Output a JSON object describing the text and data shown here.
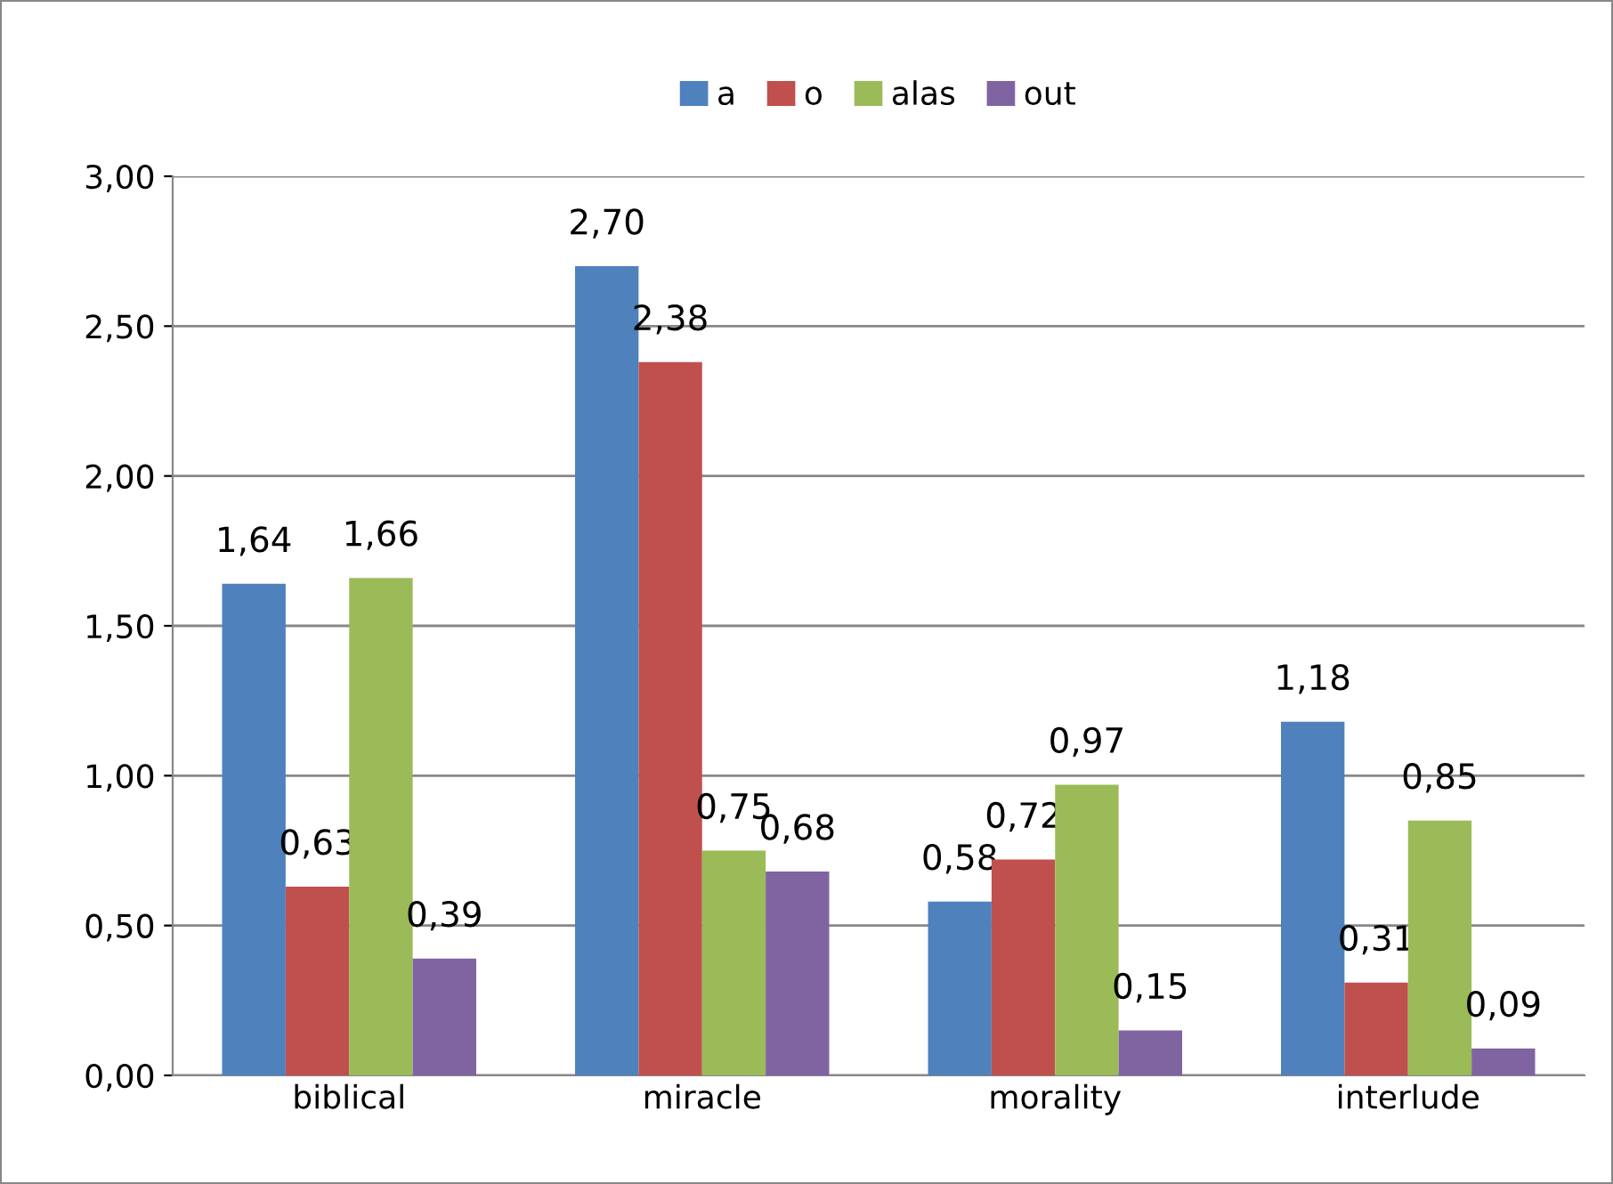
{
  "chart_data": {
    "type": "bar",
    "categories": [
      "biblical",
      "miracle",
      "morality",
      "interlude"
    ],
    "series": [
      {
        "name": "a",
        "color": "#4f81bd",
        "values": [
          1.64,
          2.7,
          0.58,
          1.18
        ],
        "value_labels": [
          "1,64",
          "2,70",
          "0,58",
          "1,18"
        ]
      },
      {
        "name": "o",
        "color": "#c0504d",
        "values": [
          0.63,
          2.38,
          0.72,
          0.31
        ],
        "value_labels": [
          "0,63",
          "2,38",
          "0,72",
          "0,31"
        ]
      },
      {
        "name": "alas",
        "color": "#9bbb59",
        "values": [
          1.66,
          0.75,
          0.97,
          0.85
        ],
        "value_labels": [
          "1,66",
          "0,75",
          "0,97",
          "0,85"
        ]
      },
      {
        "name": "out",
        "color": "#8064a2",
        "values": [
          0.39,
          0.68,
          0.15,
          0.09
        ],
        "value_labels": [
          "0,39",
          "0,68",
          "0,15",
          "0,09"
        ]
      }
    ],
    "ylim": [
      0,
      3
    ],
    "yticks": [
      {
        "value": 0,
        "label": "0,00"
      },
      {
        "value": 0.5,
        "label": "0,50"
      },
      {
        "value": 1,
        "label": "1,00"
      },
      {
        "value": 1.5,
        "label": "1,50"
      },
      {
        "value": 2,
        "label": "2,00"
      },
      {
        "value": 2.5,
        "label": "2,50"
      },
      {
        "value": 3,
        "label": "3,00"
      }
    ],
    "grid": "y",
    "legend": "top"
  }
}
